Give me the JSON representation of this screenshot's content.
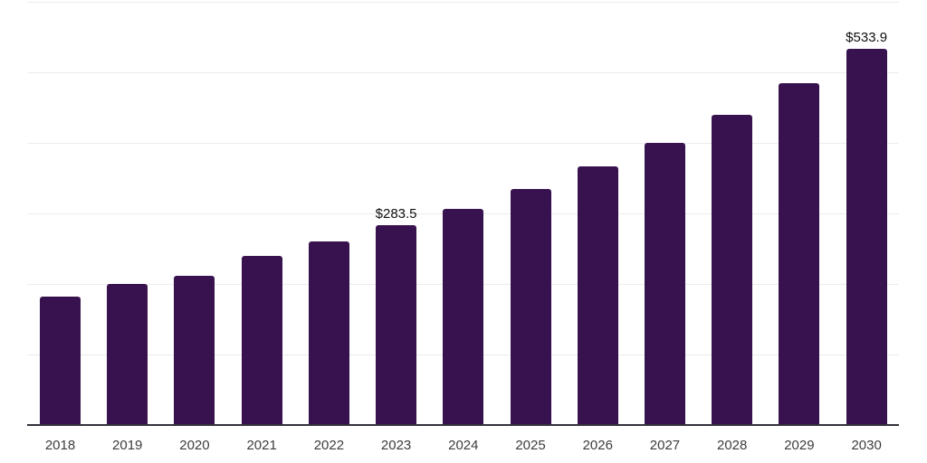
{
  "chart_data": {
    "type": "bar",
    "title": "",
    "xlabel": "",
    "ylabel": "",
    "categories": [
      "2018",
      "2019",
      "2020",
      "2021",
      "2022",
      "2023",
      "2024",
      "2025",
      "2026",
      "2027",
      "2028",
      "2029",
      "2030"
    ],
    "values": [
      182,
      200,
      212,
      240,
      260,
      283.5,
      307,
      334.5,
      366.5,
      400.5,
      440,
      484,
      533.9
    ],
    "value_labels": {
      "2023": "$283.5",
      "2030": "$533.9"
    },
    "ylim": [
      0,
      600
    ],
    "gridline_step": 100,
    "grid": true,
    "legend": false,
    "colors": {
      "bar": "#38124e",
      "gridline": "#ececec",
      "axis_line": "#35313b",
      "tick_label": "#3c3c3c",
      "value_label": "#0f0f0f",
      "background": "#ffffff"
    }
  }
}
